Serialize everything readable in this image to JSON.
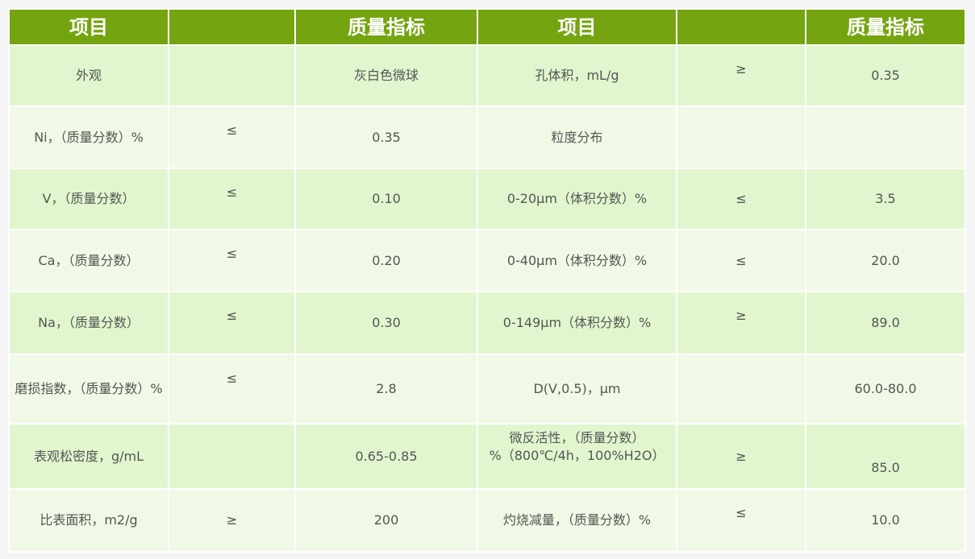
{
  "header": [
    "项目",
    "",
    "质量指标",
    "项目",
    "",
    "质量指标"
  ],
  "rows": [
    [
      "外观",
      "",
      "灰白色微球",
      "孔体积，mL/g",
      "≥",
      "0.35"
    ],
    [
      "Ni，（质量分数）%",
      "≤",
      "0.35",
      "粒度分布",
      "",
      ""
    ],
    [
      "V，（质量分数）",
      "≤",
      "0.10",
      "0-20μm（体积分数）%",
      "≤",
      "3.5"
    ],
    [
      "Ca，（质量分数）",
      "≤",
      "0.20",
      "0-40μm（体积分数）%",
      "≤",
      "20.0"
    ],
    [
      "Na，（质量分数）",
      "≤",
      "0.30",
      "0-149μm（体积分数）%",
      "≥",
      "89.0"
    ],
    [
      "磨损指数，（质量分数）%",
      "≤",
      "2.8",
      "D(V,0.5)，μm",
      "",
      "60.0-80.0"
    ],
    [
      "表观松密度，g/mL",
      "",
      "0.65-0.85",
      "微反活性，（质量分数）%（800℃/4h，100%H2O）",
      "≥",
      "85.0"
    ],
    [
      "比表面积，m2/g",
      "≥",
      "200",
      "灼烧减量，（质量分数）%",
      "≤",
      "10.0"
    ]
  ],
  "colors": {
    "header": "#74a410",
    "row_a": "#e1f6ce",
    "row_b": "#f0f9e6"
  }
}
